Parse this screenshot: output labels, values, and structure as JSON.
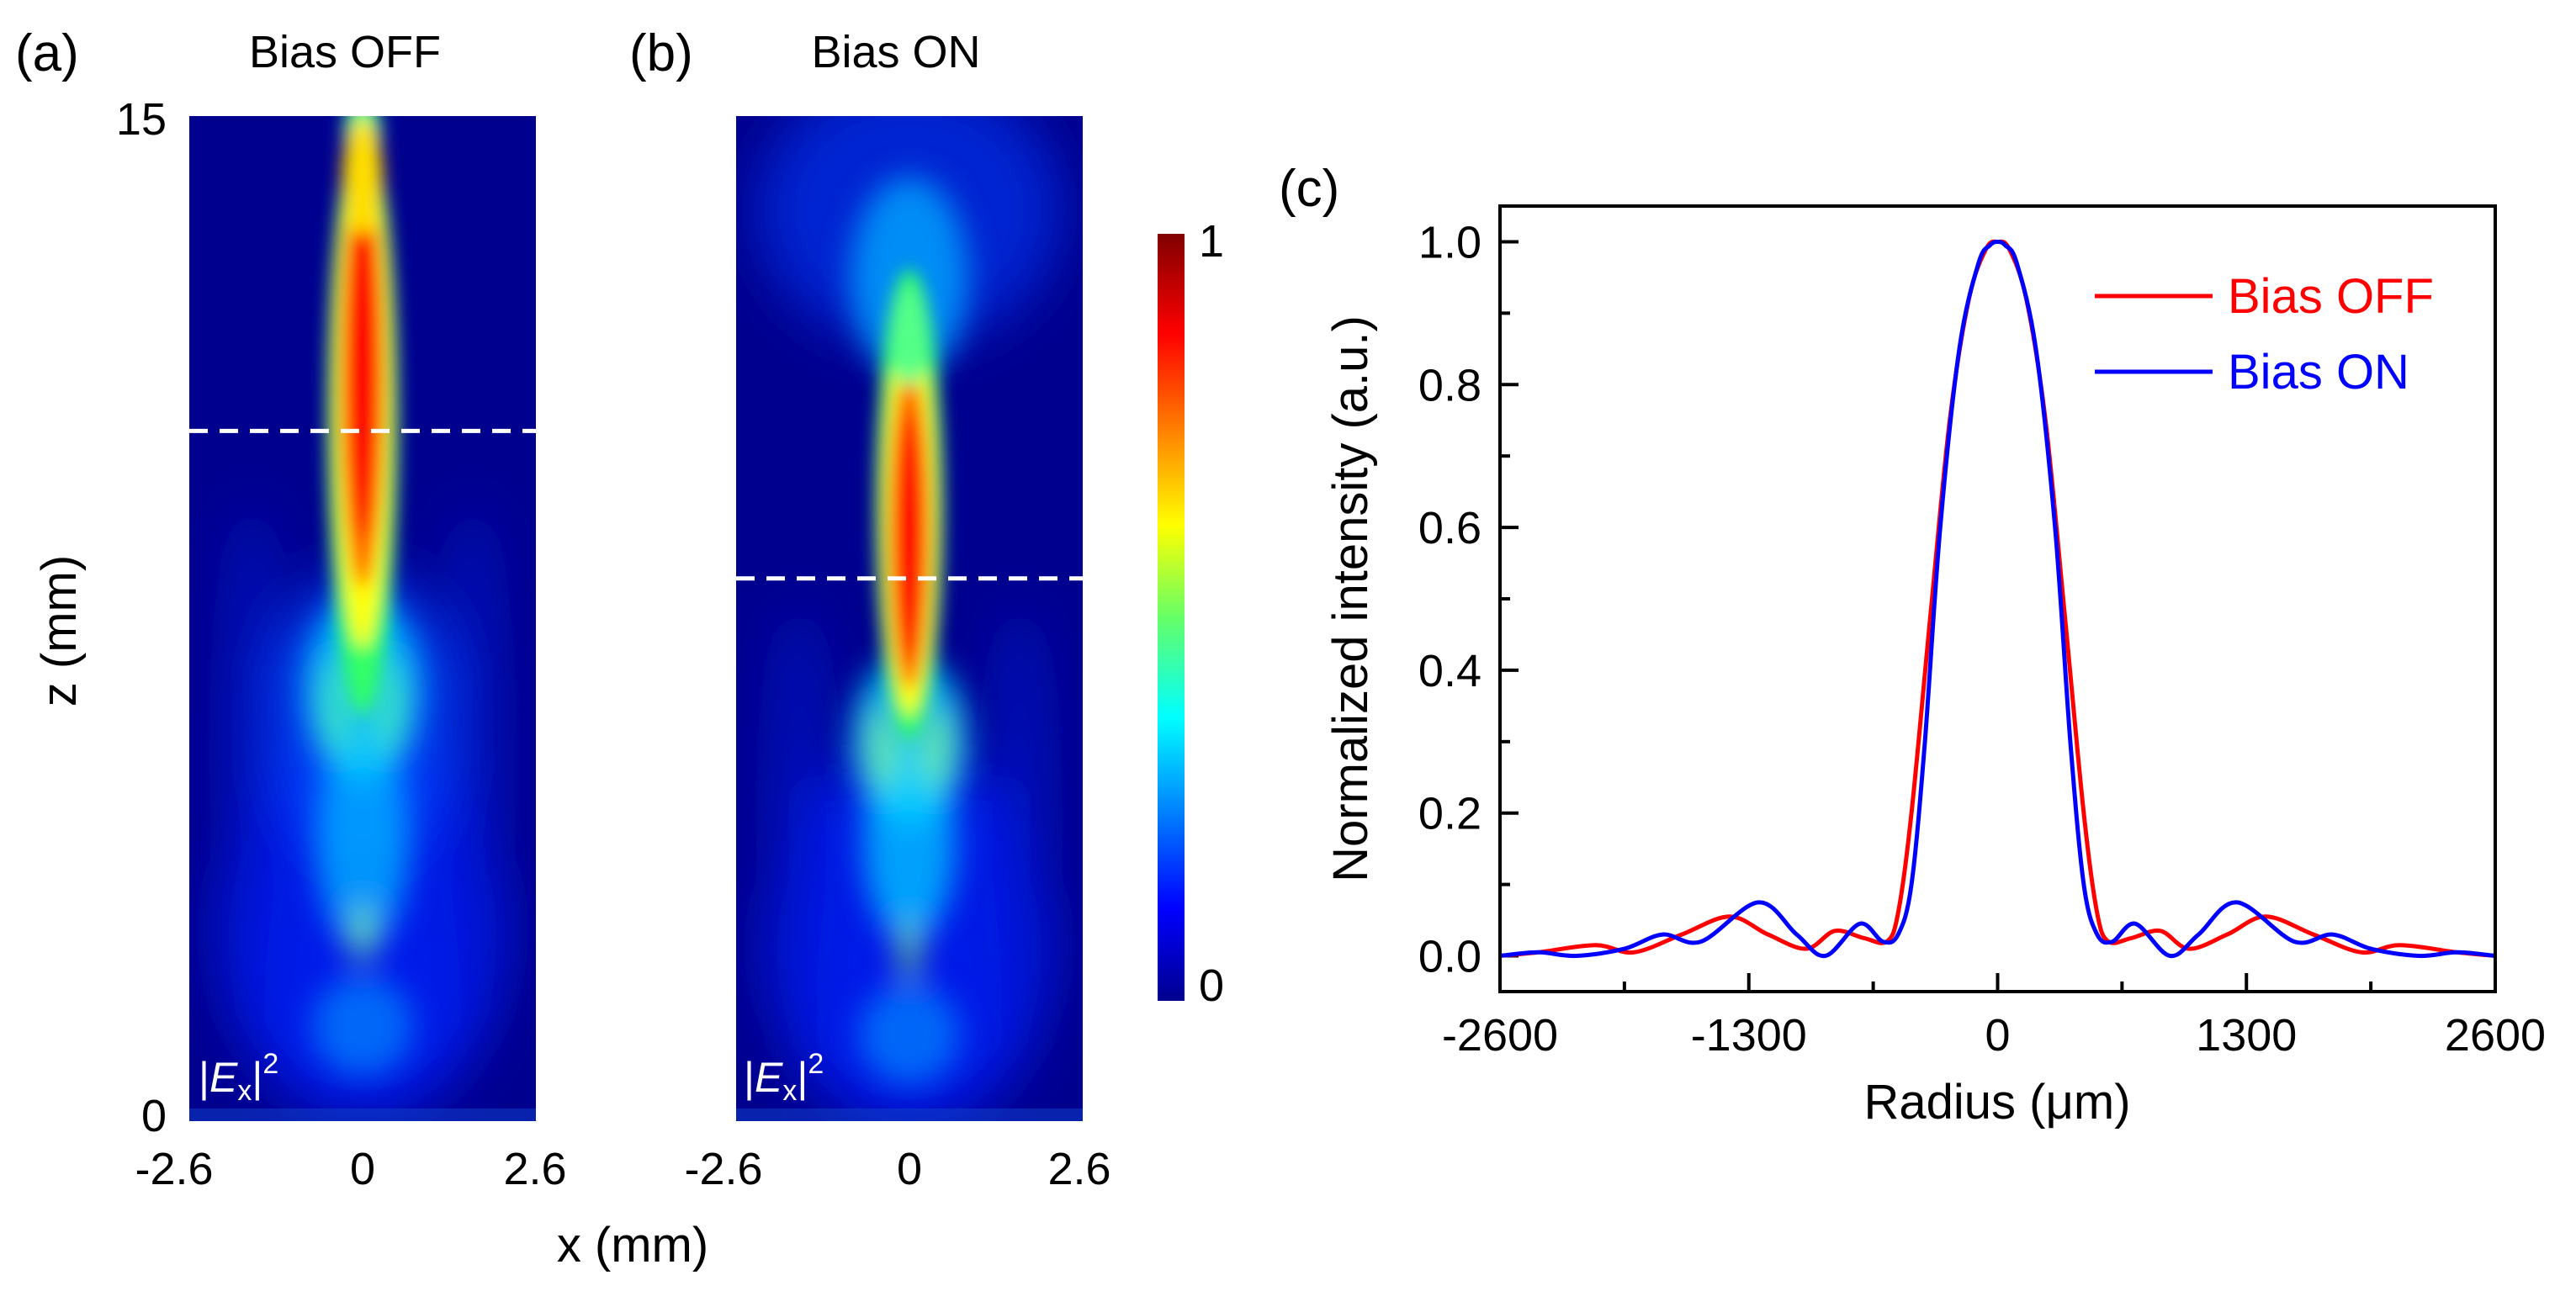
{
  "chart_data": [
    {
      "type": "heatmap",
      "panel_label": "(a)",
      "title": "Bias OFF",
      "quantity": "|E_x|^2",
      "xlabel": "x (mm)",
      "ylabel": "z (mm)",
      "xlim": [
        -2.6,
        2.6
      ],
      "ylim": [
        0,
        15
      ],
      "xticks": [
        "-2.6",
        "0",
        "2.6"
      ],
      "yticks": [
        "0",
        "15"
      ],
      "dashed_line_z": 10.3,
      "focal_region_z": [
        7.5,
        15
      ],
      "colormap": "jet",
      "colorbar_range": [
        0,
        1
      ]
    },
    {
      "type": "heatmap",
      "panel_label": "(b)",
      "title": "Bias ON",
      "quantity": "|E_x|^2",
      "xlabel": "x (mm)",
      "xlim": [
        -2.6,
        2.6
      ],
      "ylim": [
        0,
        15
      ],
      "xticks": [
        "-2.6",
        "0",
        "2.6"
      ],
      "dashed_line_z": 8.1,
      "focal_region_z": [
        6.5,
        12.5
      ],
      "colormap": "jet",
      "colorbar_range": [
        0,
        1
      ],
      "colorbar_ticks": [
        "0",
        "1"
      ]
    },
    {
      "type": "line",
      "panel_label": "(c)",
      "xlabel": "Radius (μm)",
      "ylabel": "Normalized intensity (a.u.)",
      "xlim": [
        -2600,
        2600
      ],
      "ylim": [
        -0.05,
        1.05
      ],
      "xticks": [
        "-2600",
        "-1300",
        "0",
        "1300",
        "2600"
      ],
      "yticks": [
        "0.0",
        "0.2",
        "0.4",
        "0.6",
        "0.8",
        "1.0"
      ],
      "legend_position": "top-right",
      "series": [
        {
          "name": "Bias OFF",
          "color": "#ff0000",
          "x": [
            -2600,
            -2400,
            -2100,
            -1900,
            -1650,
            -1400,
            -1200,
            -1000,
            -850,
            -700,
            -580,
            -520,
            -450,
            -350,
            -250,
            -150,
            -60,
            0,
            60,
            150,
            250,
            350,
            450,
            520,
            580,
            700,
            850,
            1000,
            1200,
            1400,
            1650,
            1900,
            2100,
            2400,
            2600
          ],
          "y": [
            0.0,
            0.005,
            0.015,
            0.005,
            0.03,
            0.055,
            0.03,
            0.01,
            0.035,
            0.025,
            0.02,
            0.06,
            0.2,
            0.48,
            0.75,
            0.92,
            0.99,
            1.0,
            0.99,
            0.92,
            0.75,
            0.48,
            0.2,
            0.06,
            0.02,
            0.025,
            0.035,
            0.01,
            0.03,
            0.055,
            0.03,
            0.005,
            0.015,
            0.005,
            0.0
          ]
        },
        {
          "name": "Bias ON",
          "color": "#0000ff",
          "x": [
            -2600,
            -2400,
            -2200,
            -1950,
            -1750,
            -1550,
            -1250,
            -1050,
            -900,
            -720,
            -600,
            -520,
            -450,
            -380,
            -300,
            -200,
            -100,
            -40,
            0,
            40,
            100,
            200,
            300,
            380,
            450,
            520,
            600,
            720,
            900,
            1050,
            1250,
            1550,
            1750,
            1950,
            2200,
            2400,
            2600
          ],
          "y": [
            0.0,
            0.005,
            0.0,
            0.01,
            0.03,
            0.02,
            0.075,
            0.03,
            0.0,
            0.045,
            0.02,
            0.03,
            0.1,
            0.3,
            0.6,
            0.85,
            0.97,
            0.995,
            1.0,
            0.995,
            0.97,
            0.85,
            0.6,
            0.3,
            0.1,
            0.03,
            0.02,
            0.045,
            0.0,
            0.03,
            0.075,
            0.02,
            0.03,
            0.01,
            0.0,
            0.005,
            0.0
          ]
        }
      ]
    }
  ]
}
